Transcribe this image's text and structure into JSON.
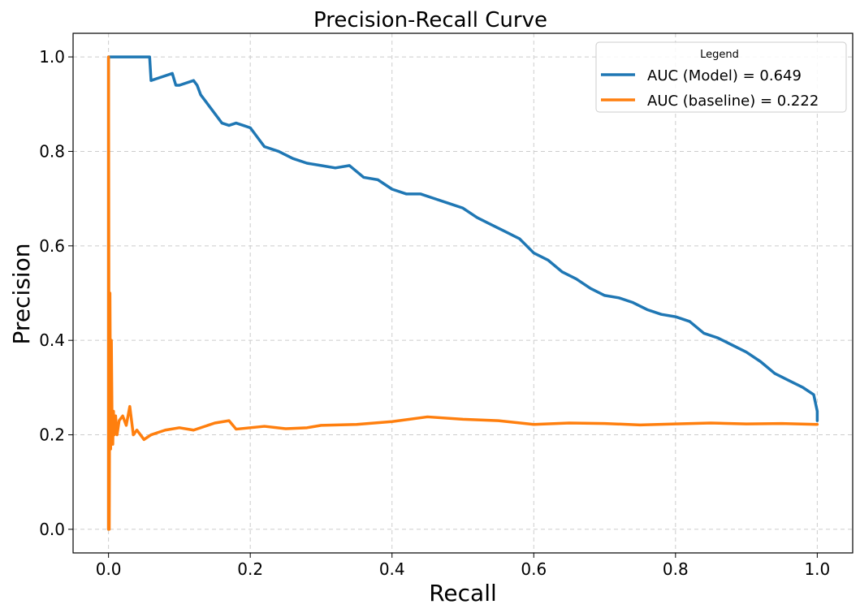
{
  "chart_data": {
    "type": "line",
    "title": "Precision-Recall Curve",
    "xlabel": "Recall",
    "ylabel": "Precision",
    "xlim": [
      -0.05,
      1.05
    ],
    "ylim": [
      -0.05,
      1.05
    ],
    "xticks": [
      0.0,
      0.2,
      0.4,
      0.6,
      0.8,
      1.0
    ],
    "xtick_labels": [
      "0.0",
      "0.2",
      "0.4",
      "0.6",
      "0.8",
      "1.0"
    ],
    "yticks": [
      0.0,
      0.2,
      0.4,
      0.6,
      0.8,
      1.0
    ],
    "ytick_labels": [
      "0.0",
      "0.2",
      "0.4",
      "0.6",
      "0.8",
      "1.0"
    ],
    "grid": true,
    "legend": {
      "title": "Legend",
      "position": "top-right"
    },
    "series": [
      {
        "name": "AUC (Model) = 0.649",
        "color": "#1f77b4",
        "x": [
          0.0,
          0.0,
          0.003,
          0.01,
          0.03,
          0.058,
          0.06,
          0.07,
          0.09,
          0.095,
          0.1,
          0.12,
          0.125,
          0.13,
          0.14,
          0.15,
          0.16,
          0.17,
          0.18,
          0.19,
          0.2,
          0.21,
          0.22,
          0.24,
          0.26,
          0.28,
          0.3,
          0.32,
          0.34,
          0.36,
          0.38,
          0.4,
          0.42,
          0.44,
          0.46,
          0.48,
          0.5,
          0.52,
          0.54,
          0.56,
          0.58,
          0.6,
          0.62,
          0.64,
          0.66,
          0.68,
          0.7,
          0.72,
          0.74,
          0.76,
          0.78,
          0.8,
          0.82,
          0.84,
          0.86,
          0.88,
          0.9,
          0.92,
          0.94,
          0.96,
          0.98,
          0.99,
          0.995,
          1.0,
          1.0
        ],
        "y": [
          0.0,
          1.0,
          1.0,
          1.0,
          1.0,
          1.0,
          0.95,
          0.955,
          0.965,
          0.94,
          0.94,
          0.95,
          0.94,
          0.92,
          0.9,
          0.88,
          0.86,
          0.855,
          0.86,
          0.855,
          0.85,
          0.83,
          0.81,
          0.8,
          0.785,
          0.775,
          0.77,
          0.765,
          0.77,
          0.745,
          0.74,
          0.72,
          0.71,
          0.71,
          0.7,
          0.69,
          0.68,
          0.66,
          0.645,
          0.63,
          0.615,
          0.585,
          0.57,
          0.545,
          0.53,
          0.51,
          0.495,
          0.49,
          0.48,
          0.465,
          0.455,
          0.45,
          0.44,
          0.415,
          0.405,
          0.39,
          0.375,
          0.355,
          0.33,
          0.315,
          0.3,
          0.29,
          0.285,
          0.25,
          0.23
        ]
      },
      {
        "name": "AUC (baseline) = 0.222",
        "color": "#ff7f0e",
        "x": [
          0.0,
          0.0,
          0.001,
          0.002,
          0.003,
          0.004,
          0.005,
          0.006,
          0.007,
          0.008,
          0.01,
          0.012,
          0.015,
          0.02,
          0.025,
          0.03,
          0.035,
          0.04,
          0.05,
          0.06,
          0.07,
          0.08,
          0.1,
          0.12,
          0.15,
          0.17,
          0.18,
          0.2,
          0.22,
          0.25,
          0.28,
          0.3,
          0.35,
          0.4,
          0.45,
          0.5,
          0.55,
          0.6,
          0.65,
          0.7,
          0.75,
          0.8,
          0.85,
          0.9,
          0.95,
          1.0
        ],
        "y": [
          0.0,
          1.0,
          0.0,
          0.5,
          0.17,
          0.4,
          0.23,
          0.18,
          0.25,
          0.2,
          0.24,
          0.2,
          0.23,
          0.24,
          0.22,
          0.26,
          0.2,
          0.21,
          0.19,
          0.2,
          0.205,
          0.21,
          0.215,
          0.21,
          0.225,
          0.23,
          0.212,
          0.215,
          0.218,
          0.213,
          0.215,
          0.22,
          0.222,
          0.228,
          0.238,
          0.233,
          0.23,
          0.222,
          0.225,
          0.224,
          0.221,
          0.223,
          0.225,
          0.223,
          0.224,
          0.222
        ]
      }
    ]
  }
}
